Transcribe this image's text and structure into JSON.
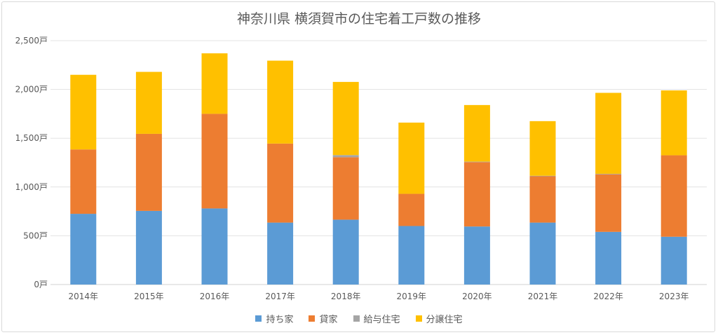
{
  "chart_data": {
    "type": "bar",
    "stacked": true,
    "title": "神奈川県 横須賀市の住宅着工戸数の推移",
    "categories": [
      "2014年",
      "2015年",
      "2016年",
      "2017年",
      "2018年",
      "2019年",
      "2020年",
      "2021年",
      "2022年",
      "2023年"
    ],
    "ylim": [
      0,
      2500
    ],
    "yticks": [
      0,
      500,
      1000,
      1500,
      2000,
      2500
    ],
    "ytick_labels": [
      "0戸",
      "500戸",
      "1,000戸",
      "1,500戸",
      "2,000戸",
      "2,500戸"
    ],
    "grid": true,
    "legend_position": "bottom",
    "series": [
      {
        "name": "持ち家",
        "color": "#5b9bd5",
        "values": [
          725,
          755,
          780,
          635,
          665,
          600,
          595,
          635,
          540,
          490
        ]
      },
      {
        "name": "貸家",
        "color": "#ed7d31",
        "values": [
          660,
          790,
          970,
          810,
          640,
          330,
          660,
          475,
          590,
          835
        ]
      },
      {
        "name": "給与住宅",
        "color": "#a5a5a5",
        "values": [
          0,
          0,
          0,
          0,
          22,
          0,
          5,
          5,
          5,
          0
        ]
      },
      {
        "name": "分譲住宅",
        "color": "#ffc000",
        "values": [
          765,
          635,
          620,
          850,
          750,
          730,
          580,
          560,
          830,
          665
        ]
      }
    ]
  }
}
